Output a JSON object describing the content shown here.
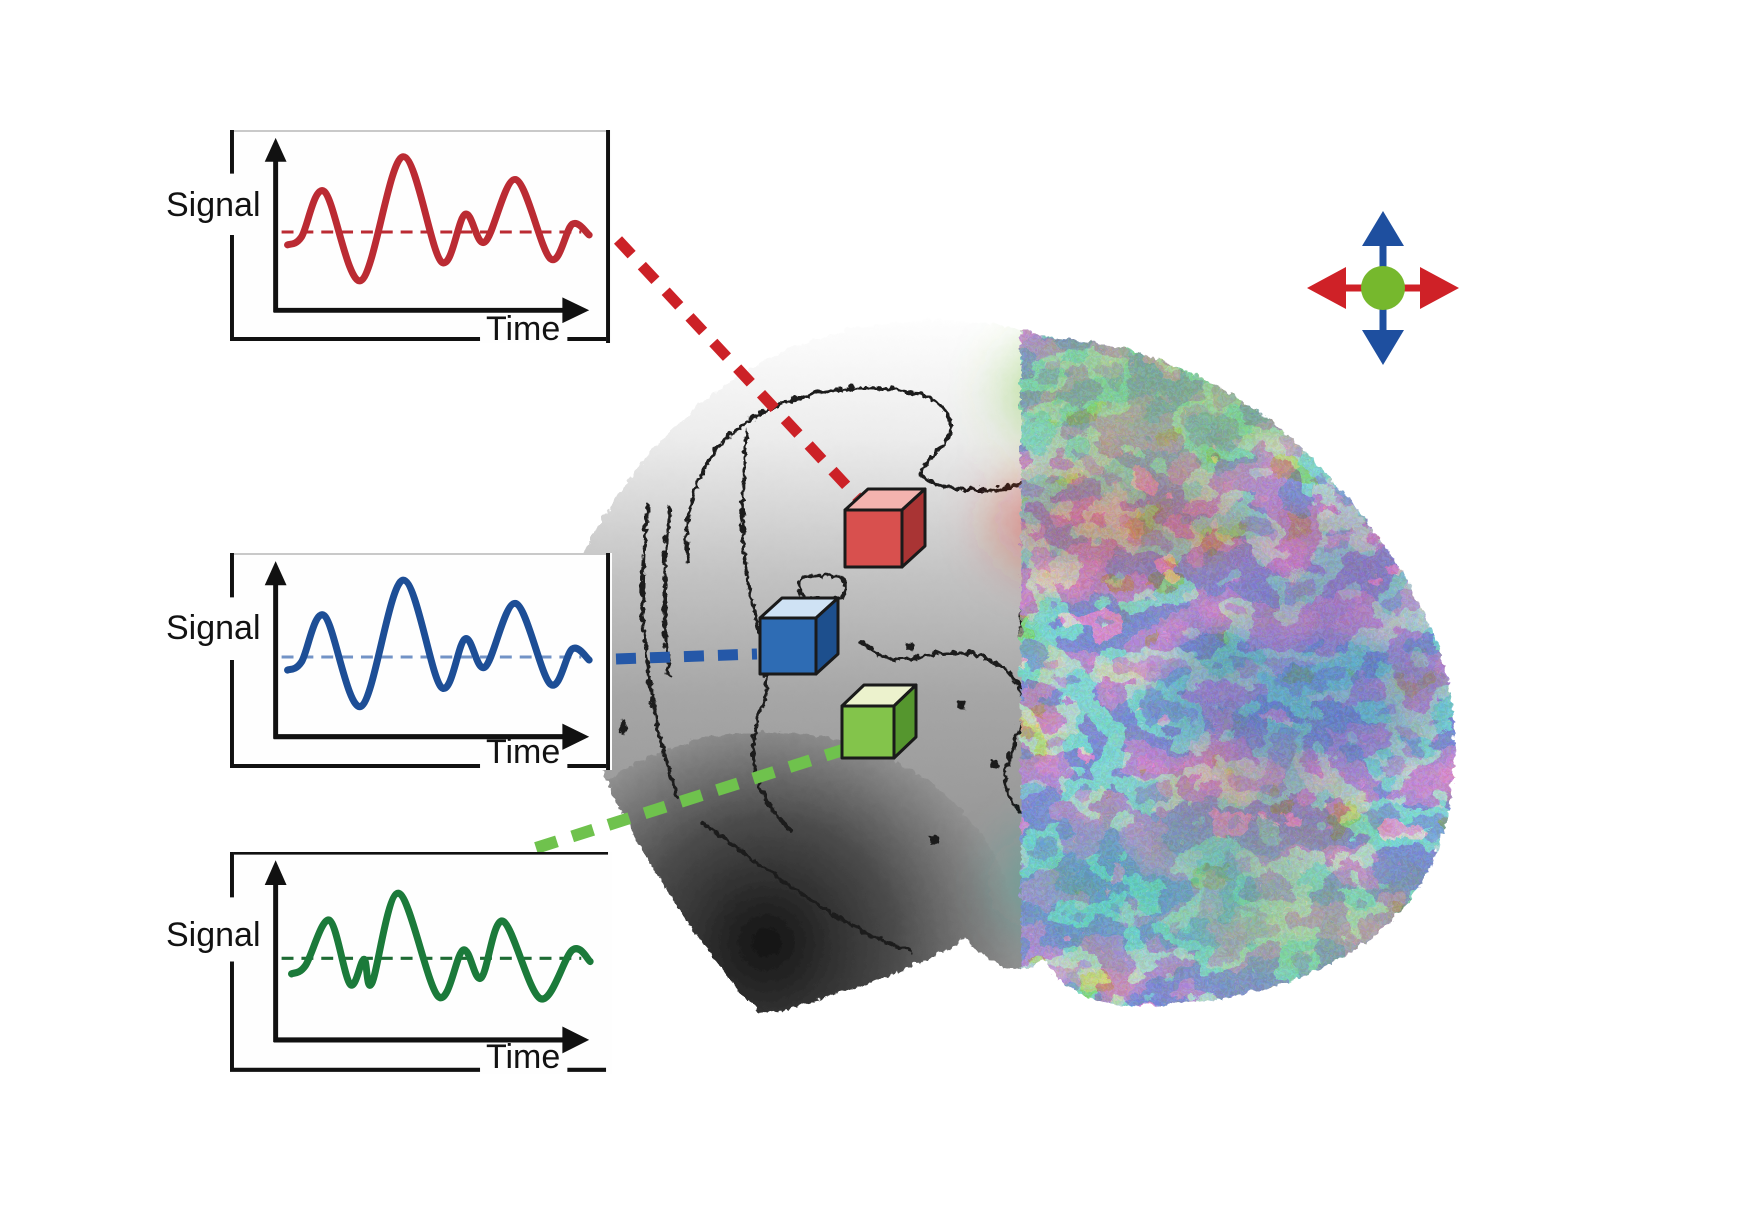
{
  "page": {
    "background": "#ffffff"
  },
  "plots": [
    {
      "id": "red",
      "ylabel": "Signal",
      "xlabel": "Time",
      "curve_color": "#bb2b33",
      "baseline_color": "#bb2b33",
      "wave": "standard"
    },
    {
      "id": "blue",
      "ylabel": "Signal",
      "xlabel": "Time",
      "curve_color": "#1d4e96",
      "baseline_color": "#7293c6",
      "wave": "standard"
    },
    {
      "id": "green",
      "ylabel": "Signal",
      "xlabel": "Time",
      "curve_color": "#1b7a3a",
      "baseline_color": "#1e6b34",
      "wave": "green"
    }
  ],
  "waveforms": {
    "standard": {
      "points": [
        [
          58,
          116
        ],
        [
          72,
          108
        ],
        [
          95,
          62
        ],
        [
          132,
          152
        ],
        [
          174,
          27
        ],
        [
          213,
          133
        ],
        [
          237,
          85
        ],
        [
          257,
          113
        ],
        [
          288,
          50
        ],
        [
          323,
          130
        ],
        [
          345,
          95
        ],
        [
          362,
          106
        ]
      ]
    },
    "green": {
      "points": [
        [
          62,
          118
        ],
        [
          76,
          110
        ],
        [
          100,
          66
        ],
        [
          121,
          128
        ],
        [
          135,
          104
        ],
        [
          143,
          127
        ],
        [
          170,
          40
        ],
        [
          210,
          140
        ],
        [
          235,
          95
        ],
        [
          253,
          122
        ],
        [
          275,
          67
        ],
        [
          313,
          142
        ],
        [
          345,
          95
        ],
        [
          363,
          106
        ]
      ]
    }
  },
  "connectors": [
    {
      "id": "red-connector",
      "color": "#cc2127"
    },
    {
      "id": "blue-connector",
      "color": "#2558a8"
    },
    {
      "id": "green-connector",
      "color": "#6fc24d"
    }
  ],
  "voxels": [
    {
      "id": "red-voxel",
      "front": "#d8504e",
      "top": "#f3b3af",
      "side": "#a93434",
      "outline": "#1a1a1a"
    },
    {
      "id": "blue-voxel",
      "front": "#2e6cb4",
      "top": "#cfe2f4",
      "side": "#1d4f8d",
      "outline": "#1a1a1a"
    },
    {
      "id": "green-voxel",
      "front": "#83c44b",
      "top": "#ecf2cd",
      "side": "#55962e",
      "outline": "#1a1a1a"
    }
  ],
  "compass": {
    "vertical_color": "#1e4f9f",
    "horizontal_color": "#cf2127",
    "center_color": "#76b82d"
  },
  "brain": {
    "contour_color": "#1a1a1a",
    "gray_light": "#ffffff",
    "gray_mid": "#a6a6a6",
    "gray_dark": "#161616"
  }
}
